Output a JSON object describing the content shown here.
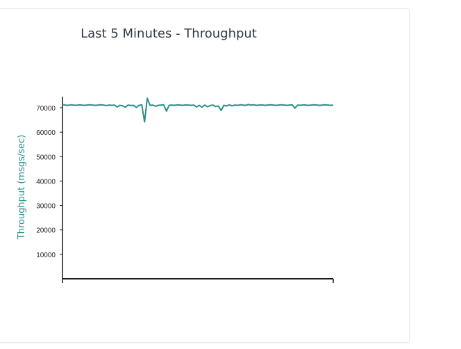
{
  "chart_data": {
    "type": "line",
    "title": "Last 5 Minutes - Throughput",
    "ylabel": "Throughput (msgs/sec)",
    "xlabel": "",
    "ylim": [
      0,
      74000
    ],
    "yticks": [
      10000,
      20000,
      30000,
      40000,
      50000,
      60000,
      70000
    ],
    "ytick_labels": [
      "10000",
      "20000",
      "30000",
      "40000",
      "50000",
      "60000",
      "70000"
    ],
    "grid": false,
    "series": [
      {
        "color": "#2a8f89",
        "values": [
          71300,
          71100,
          71000,
          71200,
          71100,
          71000,
          71200,
          71100,
          71000,
          71100,
          71200,
          71100,
          71000,
          71100,
          71200,
          71100,
          70900,
          71100,
          71000,
          71100,
          70300,
          71000,
          70800,
          70200,
          71100,
          70900,
          71000,
          70100,
          71000,
          71200,
          64200,
          73900,
          71000,
          71100,
          70600,
          71000,
          71100,
          71200,
          68600,
          71000,
          71100,
          71000,
          71200,
          71100,
          71000,
          71200,
          71100,
          71000,
          71100,
          70300,
          71000,
          70200,
          71100,
          70400,
          70900,
          71100,
          70500,
          70700,
          68900,
          71000,
          70700,
          71200,
          70800,
          71100,
          71000,
          71200,
          71100,
          71000,
          71300,
          71100,
          71200,
          71000,
          71100,
          71200,
          71000,
          71100,
          71200,
          71100,
          71000,
          71100,
          71200,
          71100,
          71000,
          71100,
          71200,
          69800,
          71100,
          71000,
          71200,
          71100,
          71000,
          71100,
          71200,
          71100,
          71000,
          71100,
          71200,
          71100,
          71000,
          71100
        ]
      }
    ]
  },
  "colors": {
    "series": "#2a8f89",
    "ylabel": "#2a8f89",
    "axis": "#1a1a1a",
    "title": "#2e3a44"
  }
}
